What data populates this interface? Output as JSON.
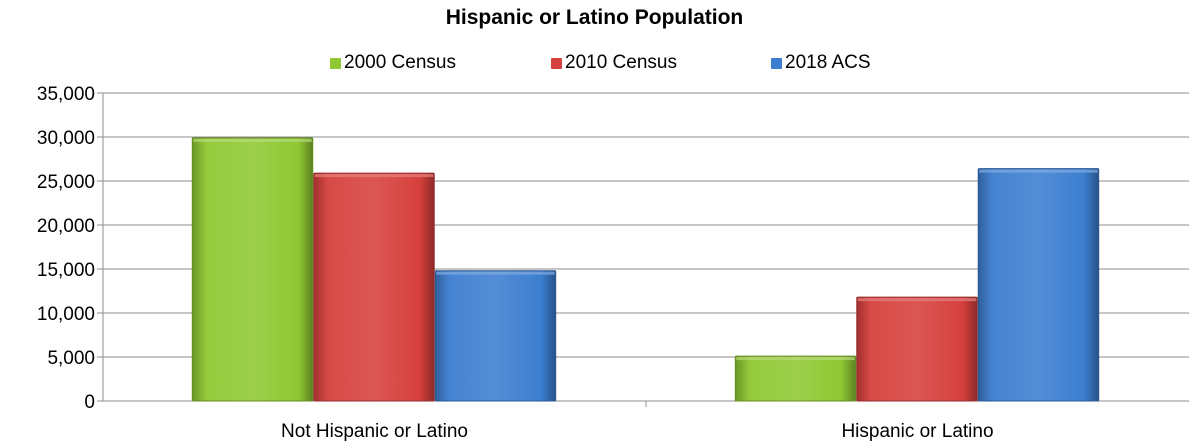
{
  "chart_data": {
    "type": "bar",
    "title": "Hispanic or Latino Population",
    "xlabel": "",
    "ylabel": "",
    "categories": [
      "Not Hispanic or Latino",
      "Hispanic or Latino"
    ],
    "series": [
      {
        "name": "2000 Census",
        "values": [
          29900,
          5100
        ],
        "color": "#8fc832"
      },
      {
        "name": "2010 Census",
        "values": [
          25900,
          11800
        ],
        "color": "#d6403d"
      },
      {
        "name": "2018 ACS",
        "values": [
          14800,
          26400
        ],
        "color": "#3c7ed0"
      }
    ],
    "ylim": [
      0,
      35000
    ],
    "yticks": [
      0,
      5000,
      10000,
      15000,
      20000,
      25000,
      30000,
      35000
    ],
    "ytick_labels": [
      "0",
      "5,000",
      "10,000",
      "15,000",
      "20,000",
      "25,000",
      "30,000",
      "35,000"
    ],
    "grid": true,
    "legend_position": "top"
  }
}
